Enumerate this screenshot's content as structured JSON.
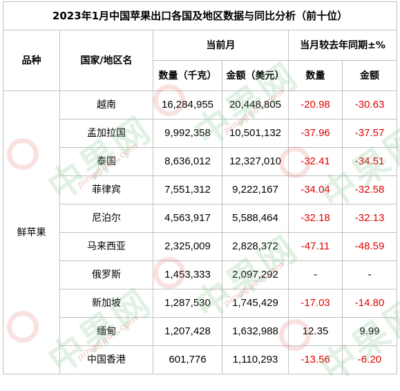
{
  "title": "2023年1月中国苹果出口各国及地区数据与同比分析（前十位）",
  "headers": {
    "variety": "品种",
    "country": "国家/地区名",
    "current_month": "当前月",
    "yoy": "当月较去年同期±%",
    "quantity": "数量（千克）",
    "amount": "金额（美元）",
    "yoy_quantity": "数量",
    "yoy_amount": "金额"
  },
  "variety": "鲜苹果",
  "rows": [
    {
      "country": "越南",
      "quantity": "16,284,955",
      "amount": "20,448,805",
      "yoy_quantity": "-20.98",
      "yoy_amount": "-30.63"
    },
    {
      "country": "孟加拉国",
      "quantity": "9,992,358",
      "amount": "10,501,132",
      "yoy_quantity": "-37.96",
      "yoy_amount": "-37.57"
    },
    {
      "country": "泰国",
      "quantity": "8,636,012",
      "amount": "12,327,010",
      "yoy_quantity": "-32.41",
      "yoy_amount": "-34.51"
    },
    {
      "country": "菲律宾",
      "quantity": "7,551,312",
      "amount": "9,222,167",
      "yoy_quantity": "-34.04",
      "yoy_amount": "-32.58"
    },
    {
      "country": "尼泊尔",
      "quantity": "4,563,917",
      "amount": "5,588,464",
      "yoy_quantity": "-32.18",
      "yoy_amount": "-32.13"
    },
    {
      "country": "马来西亚",
      "quantity": "2,325,009",
      "amount": "2,828,372",
      "yoy_quantity": "-47.11",
      "yoy_amount": "-48.59"
    },
    {
      "country": "俄罗斯",
      "quantity": "1,453,333",
      "amount": "2,097,292",
      "yoy_quantity": "-",
      "yoy_amount": "-"
    },
    {
      "country": "新加坡",
      "quantity": "1,287,530",
      "amount": "1,745,429",
      "yoy_quantity": "-17.03",
      "yoy_amount": "-14.80"
    },
    {
      "country": "缅甸",
      "quantity": "1,207,428",
      "amount": "1,632,988",
      "yoy_quantity": "12.35",
      "yoy_amount": "9.99"
    },
    {
      "country": "中国香港",
      "quantity": "601,776",
      "amount": "1,110,293",
      "yoy_quantity": "-13.56",
      "yoy_amount": "-6.20"
    }
  ],
  "watermark": {
    "text": "中果网",
    "sub": "pingguo7.com"
  },
  "colors": {
    "negative": "#e00000",
    "positive": "#000000",
    "border": "#bfbfbf",
    "watermark_green": "#78be82"
  }
}
